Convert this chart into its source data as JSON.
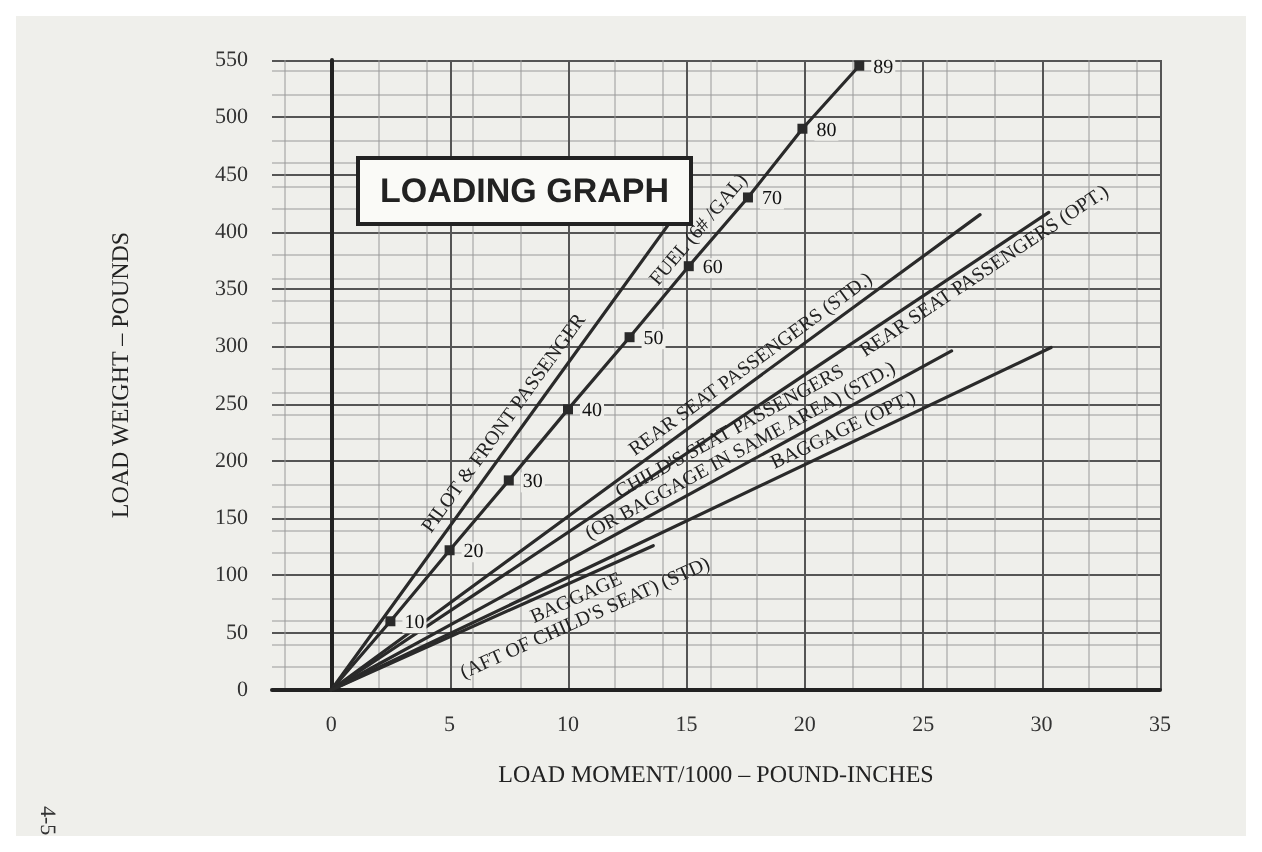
{
  "chart_data": {
    "type": "line",
    "title": "LOADING GRAPH",
    "xlabel": "LOAD MOMENT/1000 – POUND-INCHES",
    "ylabel": "LOAD WEIGHT – POUNDS",
    "annotations": [
      "4-5",
      {
        "text": "10",
        "x": 2.5,
        "y": 60
      },
      {
        "text": "20",
        "x": 5,
        "y": 122
      },
      {
        "text": "30",
        "x": 7.5,
        "y": 183
      },
      {
        "text": "40",
        "x": 10,
        "y": 245
      },
      {
        "text": "50",
        "x": 12.6,
        "y": 308
      },
      {
        "text": "60",
        "x": 15.1,
        "y": 370
      },
      {
        "text": "70",
        "x": 17.6,
        "y": 430
      },
      {
        "text": "80",
        "x": 19.9,
        "y": 490
      },
      {
        "text": "89",
        "x": 22.3,
        "y": 545
      }
    ],
    "xlim": [
      -2.5,
      35
    ],
    "xticks": [
      0,
      5,
      10,
      15,
      20,
      25,
      30,
      35
    ],
    "ylim": [
      0,
      550
    ],
    "yticks": [
      0,
      50,
      100,
      150,
      200,
      250,
      300,
      350,
      400,
      450,
      500,
      550
    ],
    "grid": true,
    "legend": false,
    "line_style": "solid",
    "series": [
      {
        "name": "PILOT & FRONT PASSENGER",
        "color": "#2a2a2a",
        "x": [
          0,
          14.3
        ],
        "values": [
          0,
          408
        ]
      },
      {
        "name": "FUEL (6# /GAL)",
        "color": "#2a2a2a",
        "marker": "square",
        "x": [
          0,
          2.5,
          5,
          7.5,
          10,
          12.6,
          15.1,
          17.6,
          19.9,
          22.3
        ],
        "values": [
          0,
          60,
          122,
          183,
          245,
          308,
          370,
          430,
          490,
          545
        ]
      },
      {
        "name": "REAR SEAT PASSENGERS (STD.)",
        "color": "#2a2a2a",
        "x": [
          0,
          27.4
        ],
        "values": [
          0,
          415
        ]
      },
      {
        "name": "REAR SEAT PASSENGERS (OPT.)",
        "color": "#2a2a2a",
        "x": [
          0,
          30.3
        ],
        "values": [
          0,
          417
        ]
      },
      {
        "name": "CHILD'S SEAT PASSENGERS\n(OR BAGGAGE IN SAME AREA) (STD.)",
        "color": "#2a2a2a",
        "x": [
          0,
          26.2
        ],
        "values": [
          0,
          296
        ]
      },
      {
        "name": "BAGGAGE (OPT.)",
        "color": "#2a2a2a",
        "x": [
          0,
          30.4
        ],
        "values": [
          0,
          299
        ]
      },
      {
        "name": "BAGGAGE\n(AFT OF CHILD'S SEAT) (STD)",
        "color": "#2a2a2a",
        "x": [
          0,
          13.6
        ],
        "values": [
          0,
          126
        ]
      }
    ]
  }
}
